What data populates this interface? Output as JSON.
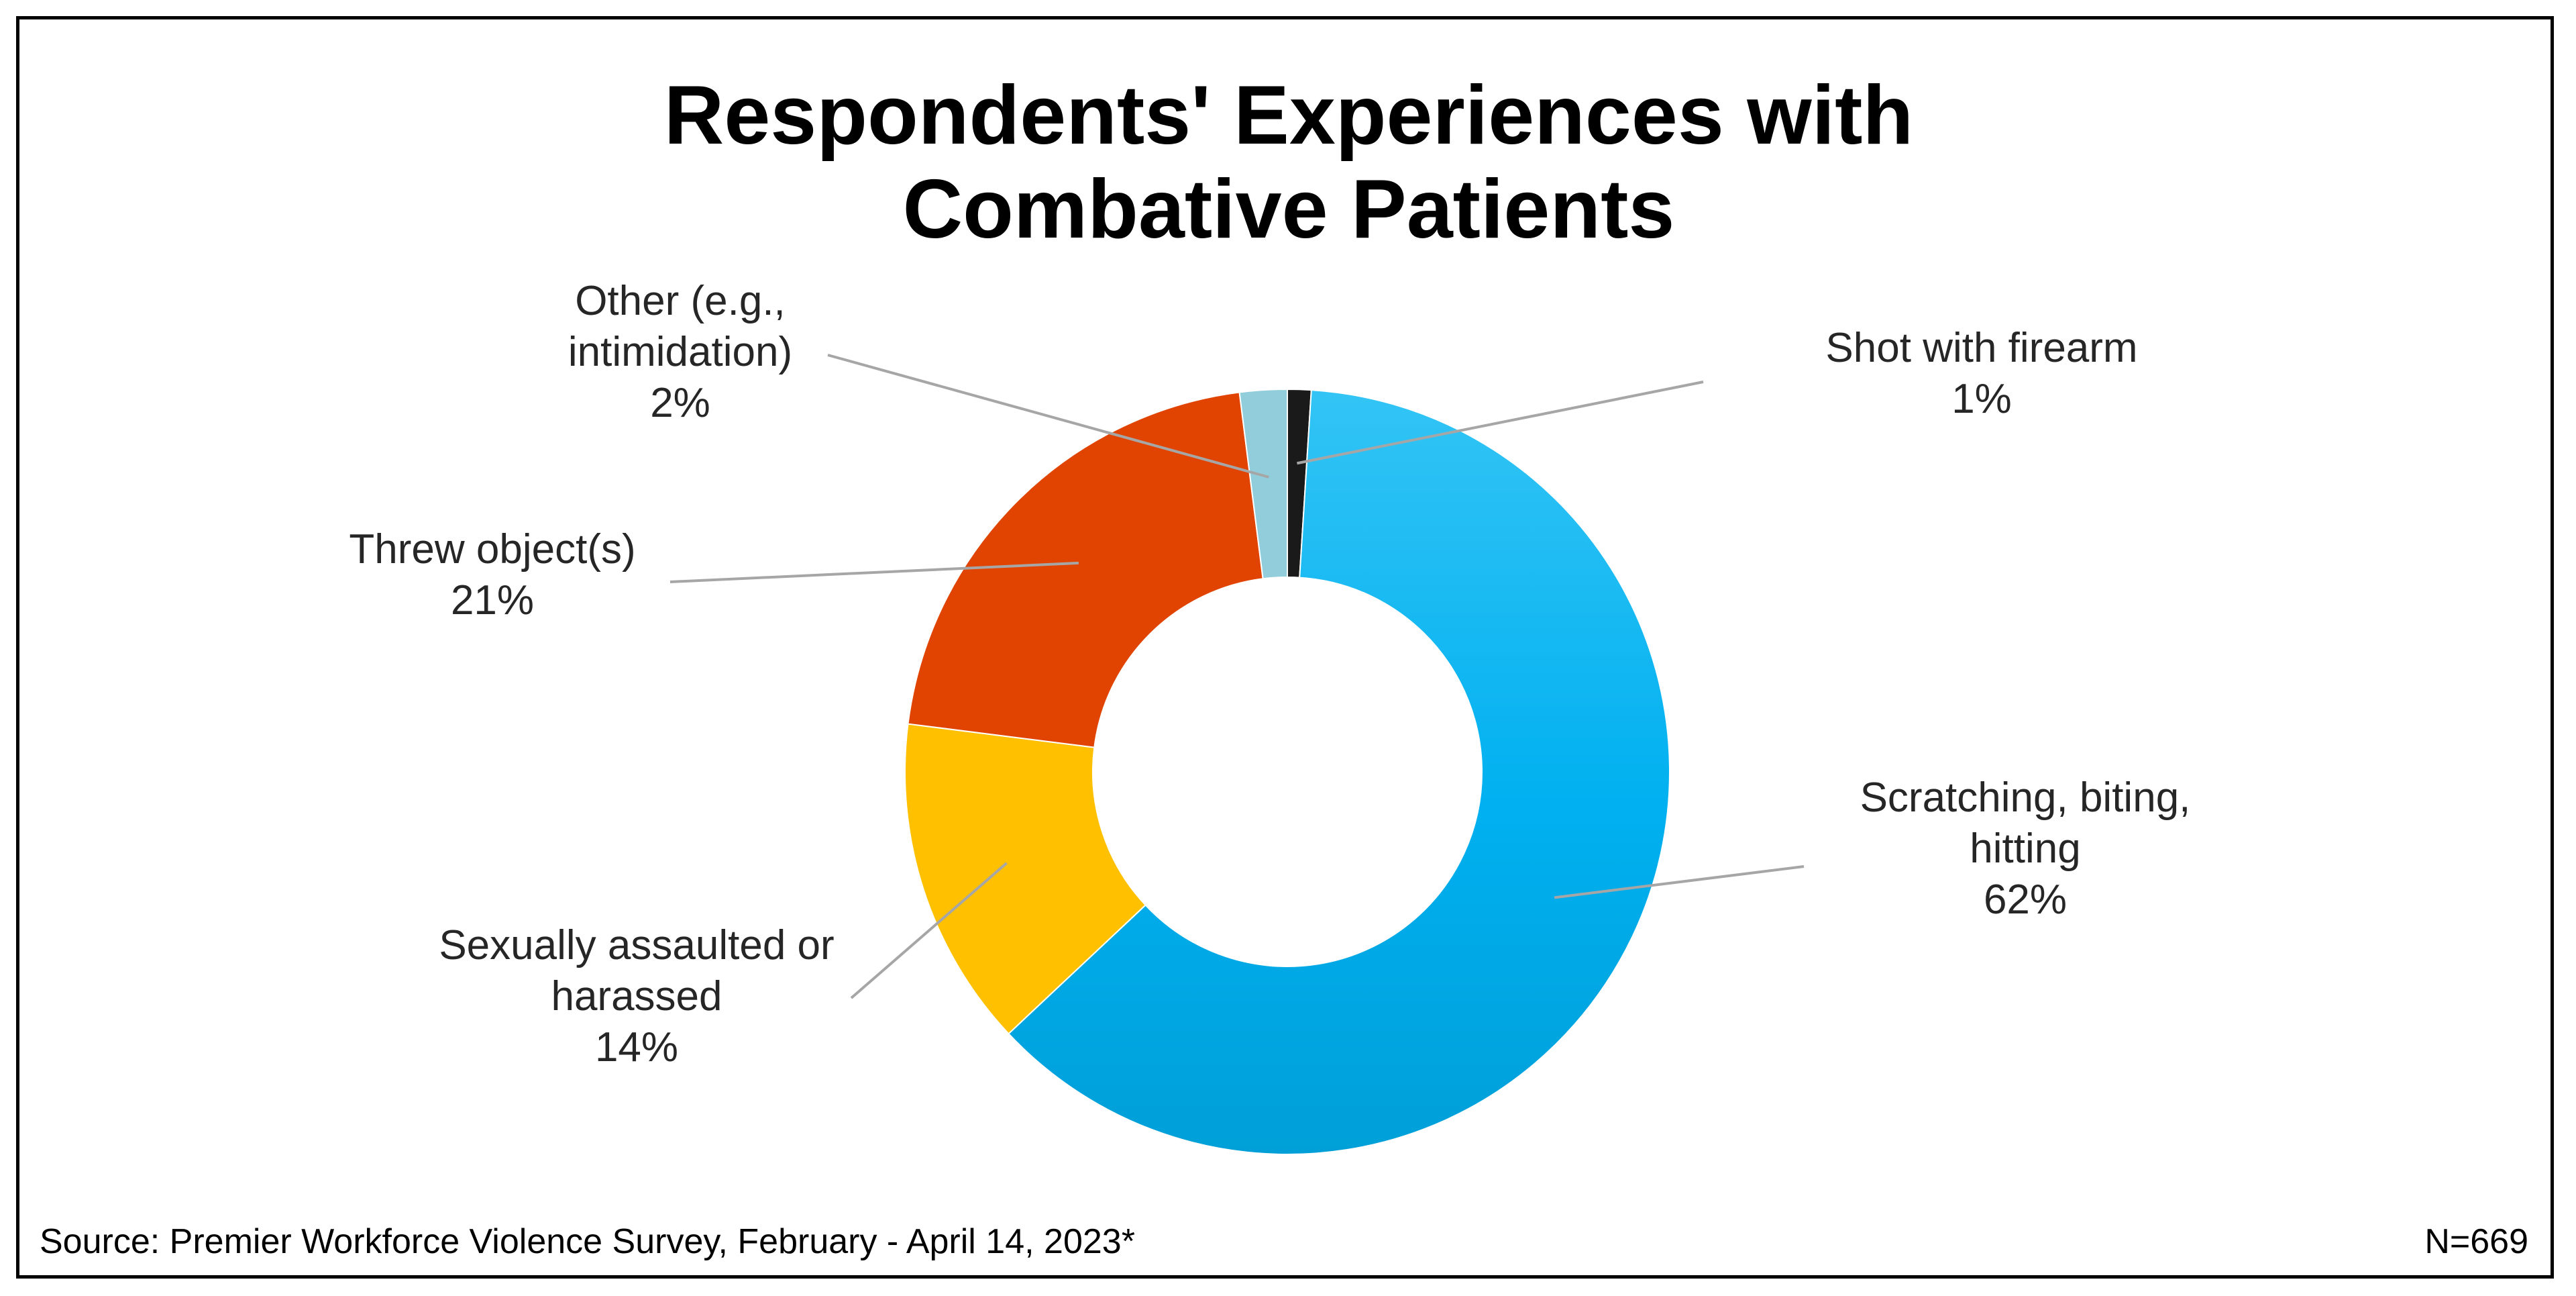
{
  "chart_data": {
    "type": "pie",
    "variant": "donut",
    "title": "Respondents' Experiences with Combative Patients",
    "title_lines": [
      "Respondents' Experiences with",
      "Combative Patients"
    ],
    "slices": [
      {
        "label": "Shot with firearm",
        "label_lines": [
          "Shot with firearm"
        ],
        "value": 1,
        "value_label": "1%",
        "color": "#1a1a1a"
      },
      {
        "label": "Scratching, biting, hitting",
        "label_lines": [
          "Scratching, biting,",
          "hitting"
        ],
        "value": 62,
        "value_label": "62%",
        "color": "#00b0f0"
      },
      {
        "label": "Sexually assaulted or harassed",
        "label_lines": [
          "Sexually assaulted or",
          "harassed"
        ],
        "value": 14,
        "value_label": "14%",
        "color": "#ffc000"
      },
      {
        "label": "Threw object(s)",
        "label_lines": [
          "Threw object(s)"
        ],
        "value": 21,
        "value_label": "21%",
        "color": "#e04400"
      },
      {
        "label": "Other (e.g., intimidation)",
        "label_lines": [
          "Other (e.g.,",
          "intimidation)"
        ],
        "value": 2,
        "value_label": "2%",
        "color": "#92cddc"
      }
    ],
    "start_angle_deg": 0,
    "direction": "clockwise",
    "legend": "none"
  },
  "footer": {
    "source": "Source: Premier Workforce Violence Survey, February - April 14, 2023*",
    "n": "N=669"
  }
}
